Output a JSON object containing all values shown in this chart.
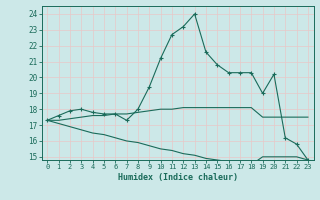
{
  "title": "",
  "xlabel": "Humidex (Indice chaleur)",
  "ylabel": "",
  "xlim": [
    -0.5,
    23.5
  ],
  "ylim": [
    14.8,
    24.5
  ],
  "yticks": [
    15,
    16,
    17,
    18,
    19,
    20,
    21,
    22,
    23,
    24
  ],
  "xticks": [
    0,
    1,
    2,
    3,
    4,
    5,
    6,
    7,
    8,
    9,
    10,
    11,
    12,
    13,
    14,
    15,
    16,
    17,
    18,
    19,
    20,
    21,
    22,
    23
  ],
  "bg_color": "#cce8e8",
  "grid_color": "#b0d8d8",
  "line_color": "#1a6b5a",
  "curve1_x": [
    0,
    1,
    2,
    3,
    4,
    5,
    6,
    7,
    8,
    9,
    10,
    11,
    12,
    13,
    14,
    15,
    16,
    17,
    18,
    19,
    20,
    21,
    22,
    23
  ],
  "curve1_y": [
    17.3,
    17.6,
    17.9,
    18.0,
    17.8,
    17.7,
    17.7,
    17.3,
    18.0,
    19.4,
    21.2,
    22.7,
    23.2,
    24.0,
    21.6,
    20.8,
    20.3,
    20.3,
    20.3,
    19.0,
    20.2,
    16.2,
    15.8,
    14.8
  ],
  "curve2_x": [
    0,
    1,
    2,
    3,
    4,
    5,
    6,
    7,
    8,
    9,
    10,
    11,
    12,
    13,
    14,
    15,
    16,
    17,
    18,
    19,
    20,
    21,
    22,
    23
  ],
  "curve2_y": [
    17.3,
    17.3,
    17.4,
    17.5,
    17.6,
    17.6,
    17.7,
    17.7,
    17.8,
    17.9,
    18.0,
    18.0,
    18.1,
    18.1,
    18.1,
    18.1,
    18.1,
    18.1,
    18.1,
    17.5,
    17.5,
    17.5,
    17.5,
    17.5
  ],
  "curve3_x": [
    0,
    1,
    2,
    3,
    4,
    5,
    6,
    7,
    8,
    9,
    10,
    11,
    12,
    13,
    14,
    15,
    16,
    17,
    18,
    19,
    20,
    21,
    22,
    23
  ],
  "curve3_y": [
    17.3,
    17.1,
    16.9,
    16.7,
    16.5,
    16.4,
    16.2,
    16.0,
    15.9,
    15.7,
    15.5,
    15.4,
    15.2,
    15.1,
    14.9,
    14.8,
    14.7,
    14.6,
    14.5,
    15.0,
    15.0,
    15.0,
    15.0,
    14.8
  ]
}
